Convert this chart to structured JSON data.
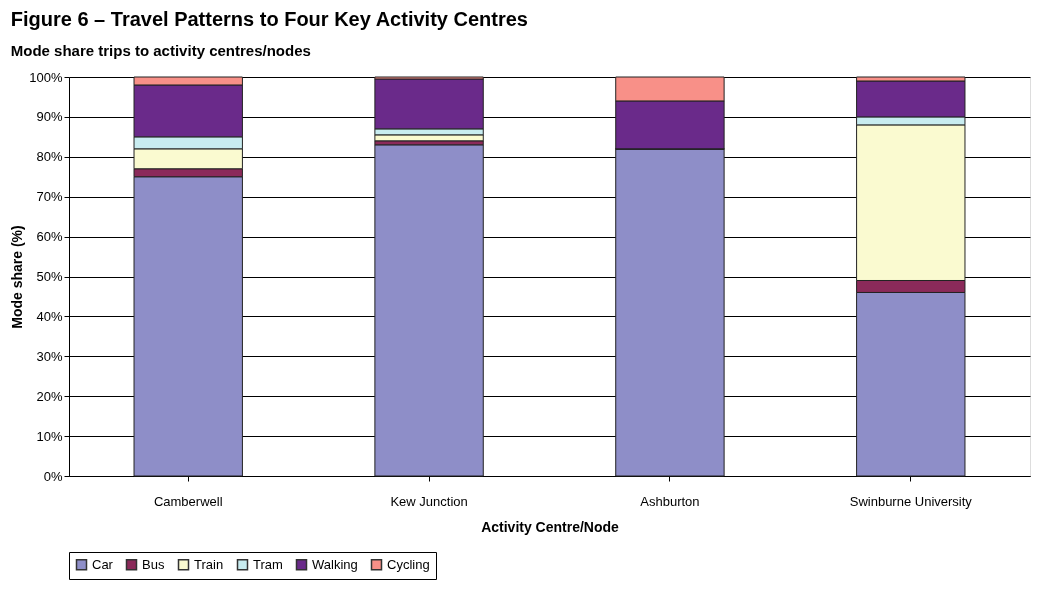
{
  "chart_data": {
    "type": "bar",
    "stacked": true,
    "title": "Figure 6 – Travel Patterns to Four Key Activity Centres",
    "subtitle": "Mode share trips to activity centres/nodes",
    "xlabel": "Activity Centre/Node",
    "ylabel": "Mode share (%)",
    "categories": [
      "Camberwell",
      "Kew Junction",
      "Ashburton",
      "Swinburne University"
    ],
    "series": [
      {
        "name": "Car",
        "color": "#8e8ec8",
        "values": [
          75,
          83,
          82,
          46
        ]
      },
      {
        "name": "Bus",
        "color": "#8b2a5a",
        "values": [
          2,
          1,
          0,
          3
        ]
      },
      {
        "name": "Train",
        "color": "#fafad0",
        "values": [
          5,
          1.5,
          0,
          39
        ]
      },
      {
        "name": "Tram",
        "color": "#c8ecf0",
        "values": [
          3,
          1.5,
          0,
          2
        ]
      },
      {
        "name": "Walking",
        "color": "#6a2a8a",
        "values": [
          13,
          12.5,
          12,
          9
        ]
      },
      {
        "name": "Cycling",
        "color": "#f89088",
        "values": [
          2,
          0.5,
          6,
          1
        ]
      }
    ],
    "ylim": [
      0,
      100
    ],
    "yticks": [
      {
        "value": 0,
        "label": "0%"
      },
      {
        "value": 10,
        "label": "10%"
      },
      {
        "value": 20,
        "label": "20%"
      },
      {
        "value": 30,
        "label": "30%"
      },
      {
        "value": 40,
        "label": "40%"
      },
      {
        "value": 50,
        "label": "50%"
      },
      {
        "value": 60,
        "label": "60%"
      },
      {
        "value": 70,
        "label": "70%"
      },
      {
        "value": 80,
        "label": "80%"
      },
      {
        "value": 90,
        "label": "90%"
      },
      {
        "value": 100,
        "label": "100%"
      }
    ],
    "grid": "y",
    "legend": "bottom"
  }
}
